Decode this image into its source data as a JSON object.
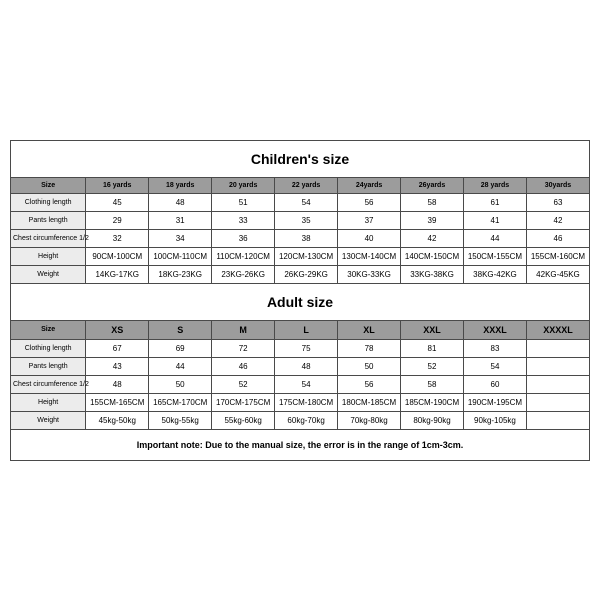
{
  "children": {
    "title": "Children's size",
    "columns": [
      "Size",
      "16 yards",
      "18 yards",
      "20 yards",
      "22 yards",
      "24yards",
      "26yards",
      "28 yards",
      "30yards"
    ],
    "rows": [
      {
        "label": "Clothing length",
        "values": [
          "45",
          "48",
          "51",
          "54",
          "56",
          "58",
          "61",
          "63"
        ]
      },
      {
        "label": "Pants length",
        "values": [
          "29",
          "31",
          "33",
          "35",
          "37",
          "39",
          "41",
          "42"
        ]
      },
      {
        "label": "Chest circumference 1/2",
        "values": [
          "32",
          "34",
          "36",
          "38",
          "40",
          "42",
          "44",
          "46"
        ]
      },
      {
        "label": "Height",
        "values": [
          "90CM-100CM",
          "100CM-110CM",
          "110CM-120CM",
          "120CM-130CM",
          "130CM-140CM",
          "140CM-150CM",
          "150CM-155CM",
          "155CM-160CM"
        ]
      },
      {
        "label": "Weight",
        "values": [
          "14KG-17KG",
          "18KG-23KG",
          "23KG-26KG",
          "26KG-29KG",
          "30KG-33KG",
          "33KG-38KG",
          "38KG-42KG",
          "42KG-45KG"
        ]
      }
    ]
  },
  "adult": {
    "title": "Adult size",
    "columns": [
      "Size",
      "XS",
      "S",
      "M",
      "L",
      "XL",
      "XXL",
      "XXXL",
      "XXXXL"
    ],
    "rows": [
      {
        "label": "Clothing length",
        "values": [
          "67",
          "69",
          "72",
          "75",
          "78",
          "81",
          "83",
          ""
        ]
      },
      {
        "label": "Pants length",
        "values": [
          "43",
          "44",
          "46",
          "48",
          "50",
          "52",
          "54",
          ""
        ]
      },
      {
        "label": "Chest circumference 1/2",
        "values": [
          "48",
          "50",
          "52",
          "54",
          "56",
          "58",
          "60",
          ""
        ]
      },
      {
        "label": "Height",
        "values": [
          "155CM-165CM",
          "165CM-170CM",
          "170CM-175CM",
          "175CM-180CM",
          "180CM-185CM",
          "185CM-190CM",
          "190CM-195CM",
          ""
        ]
      },
      {
        "label": "Weight",
        "values": [
          "45kg-50kg",
          "50kg-55kg",
          "55kg-60kg",
          "60kg-70kg",
          "70kg-80kg",
          "80kg-90kg",
          "90kg-105kg",
          ""
        ]
      }
    ]
  },
  "note": "Important note: Due to the manual size, the error is in the range of 1cm-3cm.",
  "colors": {
    "header_bg": "#9c9c9c",
    "rowlabel_bg": "#ececec",
    "border": "#4a4a4a",
    "text": "#000000",
    "bg": "#ffffff"
  }
}
